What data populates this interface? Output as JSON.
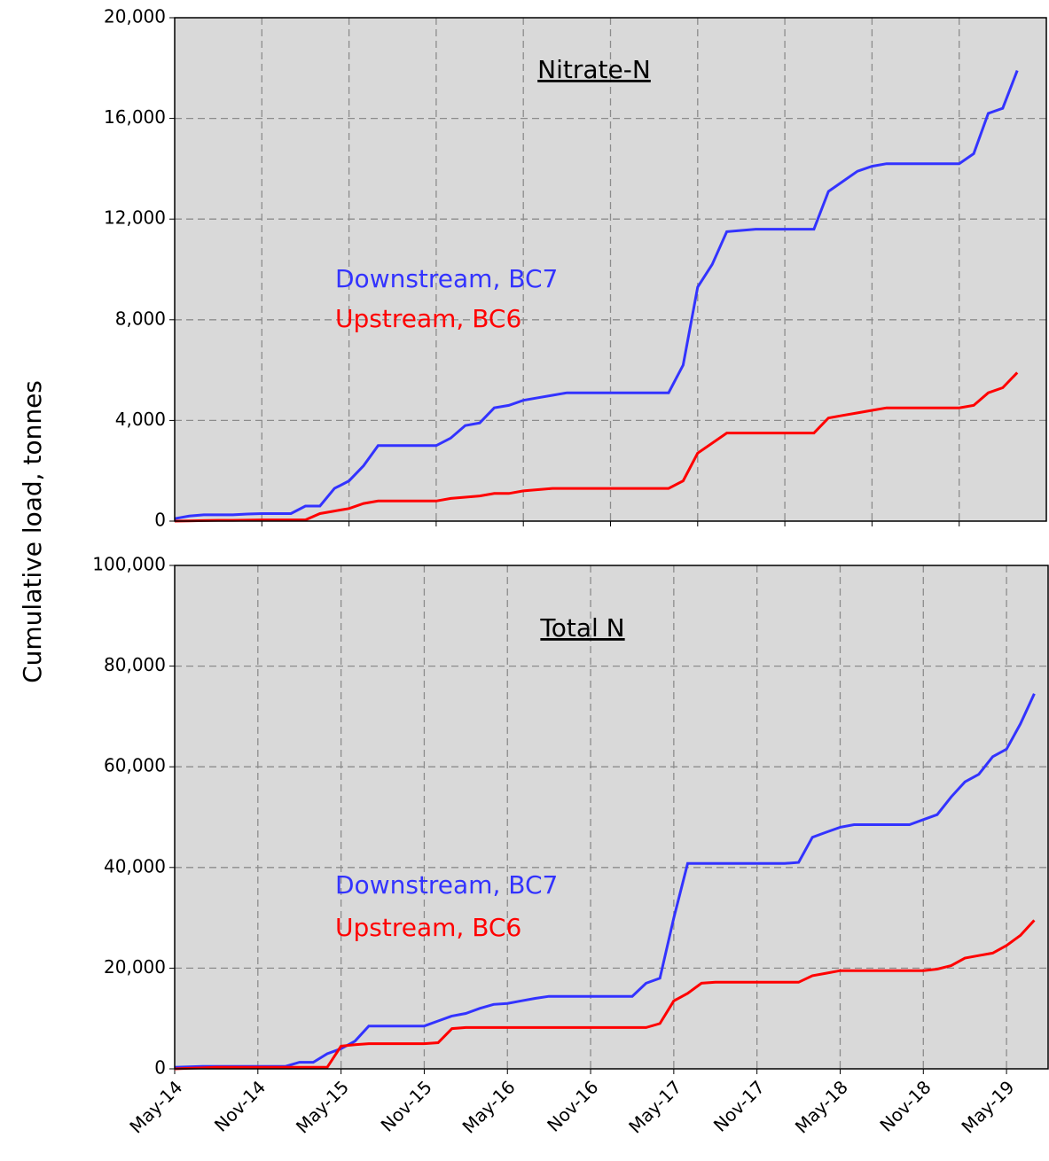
{
  "chart_data": [
    {
      "type": "line",
      "title": "Nitrate-N",
      "y_label": "Cumulative load, tonnes",
      "x": [
        "2014-05",
        "2014-06",
        "2014-07",
        "2014-08",
        "2014-09",
        "2014-10",
        "2014-11",
        "2014-12",
        "2015-01",
        "2015-02",
        "2015-03",
        "2015-04",
        "2015-05",
        "2015-06",
        "2015-07",
        "2015-08",
        "2015-09",
        "2015-10",
        "2015-11",
        "2015-12",
        "2016-01",
        "2016-02",
        "2016-03",
        "2016-04",
        "2016-05",
        "2016-06",
        "2016-07",
        "2016-08",
        "2016-09",
        "2016-10",
        "2016-11",
        "2016-12",
        "2017-01",
        "2017-02",
        "2017-03",
        "2017-04",
        "2017-05",
        "2017-06",
        "2017-07",
        "2017-08",
        "2017-09",
        "2017-10",
        "2017-11",
        "2017-12",
        "2018-01",
        "2018-02",
        "2018-03",
        "2018-04",
        "2018-05",
        "2018-06",
        "2018-07",
        "2018-08",
        "2018-09",
        "2018-10",
        "2018-11",
        "2018-12",
        "2019-01",
        "2019-02",
        "2019-03"
      ],
      "series": [
        {
          "name": "Downstream, BC7",
          "color": "#3333ff",
          "values": [
            100,
            200,
            250,
            250,
            250,
            280,
            300,
            300,
            300,
            600,
            600,
            1300,
            1600,
            2200,
            3000,
            3000,
            3000,
            3000,
            3000,
            3300,
            3800,
            3900,
            4500,
            4600,
            4800,
            4900,
            5000,
            5100,
            5100,
            5100,
            5100,
            5100,
            5100,
            5100,
            5100,
            6200,
            9300,
            10200,
            11500,
            11550,
            11600,
            11600,
            11600,
            11600,
            11600,
            13100,
            13500,
            13900,
            14100,
            14200,
            14200,
            14200,
            14200,
            14200,
            14200,
            14600,
            16200,
            16400,
            17900
          ]
        },
        {
          "name": "Upstream, BC6",
          "color": "#ff0000",
          "values": [
            0,
            10,
            20,
            30,
            30,
            40,
            50,
            50,
            50,
            50,
            300,
            400,
            500,
            700,
            800,
            800,
            800,
            800,
            800,
            900,
            950,
            1000,
            1100,
            1100,
            1200,
            1250,
            1300,
            1300,
            1300,
            1300,
            1300,
            1300,
            1300,
            1300,
            1300,
            1600,
            2700,
            3100,
            3500,
            3500,
            3500,
            3500,
            3500,
            3500,
            3500,
            4100,
            4200,
            4300,
            4400,
            4500,
            4500,
            4500,
            4500,
            4500,
            4500,
            4600,
            5100,
            5300,
            5900
          ]
        }
      ],
      "xlim": [
        "2014-05",
        "2019-05"
      ],
      "xticks": [
        "2014-11",
        "2015-05",
        "2015-11",
        "2016-05",
        "2016-11",
        "2017-05",
        "2017-11",
        "2018-05",
        "2018-11"
      ],
      "ylim": [
        0,
        20000
      ],
      "yticks": [
        {
          "value": 0,
          "label": "0"
        },
        {
          "value": 4000,
          "label": "4,000"
        },
        {
          "value": 8000,
          "label": "8,000"
        },
        {
          "value": 12000,
          "label": "12,000"
        },
        {
          "value": 16000,
          "label": "16,000"
        },
        {
          "value": 20000,
          "label": "20,000"
        }
      ],
      "grid": true
    },
    {
      "type": "line",
      "title": "Total N",
      "x": [
        "2014-05",
        "2014-06",
        "2014-07",
        "2014-08",
        "2014-09",
        "2014-10",
        "2014-11",
        "2014-12",
        "2015-01",
        "2015-02",
        "2015-03",
        "2015-04",
        "2015-05",
        "2015-06",
        "2015-07",
        "2015-08",
        "2015-09",
        "2015-10",
        "2015-11",
        "2015-12",
        "2016-01",
        "2016-02",
        "2016-03",
        "2016-04",
        "2016-05",
        "2016-06",
        "2016-07",
        "2016-08",
        "2016-09",
        "2016-10",
        "2016-11",
        "2016-12",
        "2017-01",
        "2017-02",
        "2017-03",
        "2017-04",
        "2017-05",
        "2017-06",
        "2017-07",
        "2017-08",
        "2017-09",
        "2017-10",
        "2017-11",
        "2017-12",
        "2018-01",
        "2018-02",
        "2018-03",
        "2018-04",
        "2018-05",
        "2018-06",
        "2018-07",
        "2018-08",
        "2018-09",
        "2018-10",
        "2018-11",
        "2018-12",
        "2019-01",
        "2019-02",
        "2019-03",
        "2019-04",
        "2019-05",
        "2019-06",
        "2019-07"
      ],
      "series": [
        {
          "name": "Downstream, BC7",
          "color": "#3333ff",
          "values": [
            300,
            400,
            500,
            500,
            500,
            500,
            500,
            500,
            500,
            1300,
            1300,
            3000,
            4000,
            5500,
            8500,
            8500,
            8500,
            8500,
            8500,
            9500,
            10500,
            11000,
            12000,
            12800,
            13000,
            13500,
            14000,
            14400,
            14400,
            14400,
            14400,
            14400,
            14400,
            14400,
            17000,
            18000,
            30000,
            40800,
            40800,
            40800,
            40800,
            40800,
            40800,
            40800,
            40800,
            41000,
            46000,
            47000,
            48000,
            48500,
            48500,
            48500,
            48500,
            48500,
            49500,
            50500,
            54000,
            57000,
            58500,
            62000,
            63500,
            68500,
            74500
          ]
        },
        {
          "name": "Upstream, BC6",
          "color": "#ff0000",
          "values": [
            0,
            100,
            200,
            300,
            300,
            300,
            300,
            300,
            300,
            300,
            300,
            300,
            4500,
            4800,
            5000,
            5000,
            5000,
            5000,
            5000,
            5200,
            8000,
            8200,
            8200,
            8200,
            8200,
            8200,
            8200,
            8200,
            8200,
            8200,
            8200,
            8200,
            8200,
            8200,
            8200,
            9000,
            13500,
            15000,
            17000,
            17200,
            17200,
            17200,
            17200,
            17200,
            17200,
            17200,
            18500,
            19000,
            19500,
            19500,
            19500,
            19500,
            19500,
            19500,
            19500,
            19800,
            20500,
            22000,
            22500,
            23000,
            24500,
            26500,
            29500
          ]
        }
      ],
      "xlim": [
        "2014-05",
        "2019-08"
      ],
      "xticks": [
        {
          "value": "2014-05",
          "label": "May-14"
        },
        {
          "value": "2014-11",
          "label": "Nov-14"
        },
        {
          "value": "2015-05",
          "label": "May-15"
        },
        {
          "value": "2015-11",
          "label": "Nov-15"
        },
        {
          "value": "2016-05",
          "label": "May-16"
        },
        {
          "value": "2016-11",
          "label": "Nov-16"
        },
        {
          "value": "2017-05",
          "label": "May-17"
        },
        {
          "value": "2017-11",
          "label": "Nov-17"
        },
        {
          "value": "2018-05",
          "label": "May-18"
        },
        {
          "value": "2018-11",
          "label": "Nov-18"
        },
        {
          "value": "2019-05",
          "label": "May-19"
        }
      ],
      "ylim": [
        0,
        100000
      ],
      "yticks": [
        {
          "value": 0,
          "label": "0"
        },
        {
          "value": 20000,
          "label": "20,000"
        },
        {
          "value": 40000,
          "label": "40,000"
        },
        {
          "value": 60000,
          "label": "60,000"
        },
        {
          "value": 80000,
          "label": "80,000"
        },
        {
          "value": 100000,
          "label": "100,000"
        }
      ],
      "grid": true
    }
  ]
}
